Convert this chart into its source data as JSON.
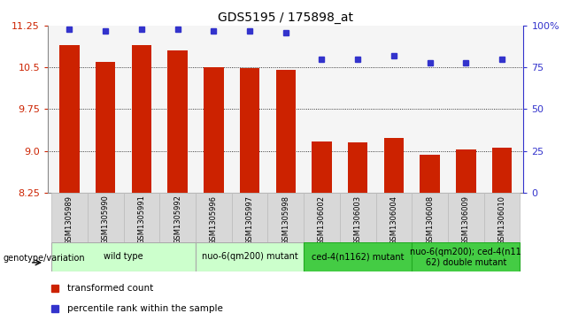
{
  "title": "GDS5195 / 175898_at",
  "samples": [
    "GSM1305989",
    "GSM1305990",
    "GSM1305991",
    "GSM1305992",
    "GSM1305996",
    "GSM1305997",
    "GSM1305998",
    "GSM1306002",
    "GSM1306003",
    "GSM1306004",
    "GSM1306008",
    "GSM1306009",
    "GSM1306010"
  ],
  "bar_values": [
    10.9,
    10.6,
    10.9,
    10.8,
    10.5,
    10.48,
    10.46,
    9.17,
    9.15,
    9.23,
    8.93,
    9.02,
    9.05
  ],
  "percentile_values": [
    98,
    97,
    98,
    98,
    97,
    97,
    96,
    80,
    80,
    82,
    78,
    78,
    80
  ],
  "ymin": 8.25,
  "ymax": 11.25,
  "yticks": [
    8.25,
    9.0,
    9.75,
    10.5,
    11.25
  ],
  "right_yticks": [
    0,
    25,
    50,
    75,
    100
  ],
  "bar_color": "#cc2200",
  "dot_color": "#3333cc",
  "plot_bg": "#f5f5f5",
  "groups": [
    {
      "label": "wild type",
      "start": 0,
      "end": 4,
      "color": "#ccffcc",
      "border": "#aaaaaa"
    },
    {
      "label": "nuo-6(qm200) mutant",
      "start": 4,
      "end": 7,
      "color": "#ccffcc",
      "border": "#aaaaaa"
    },
    {
      "label": "ced-4(n1162) mutant",
      "start": 7,
      "end": 10,
      "color": "#44cc44",
      "border": "#22aa22"
    },
    {
      "label": "nuo-6(qm200); ced-4(n11\n62) double mutant",
      "start": 10,
      "end": 13,
      "color": "#44cc44",
      "border": "#22aa22"
    }
  ],
  "legend_items": [
    {
      "label": "transformed count",
      "color": "#cc2200"
    },
    {
      "label": "percentile rank within the sample",
      "color": "#3333cc"
    }
  ],
  "genotype_label": "genotype/variation",
  "title_fontsize": 10
}
